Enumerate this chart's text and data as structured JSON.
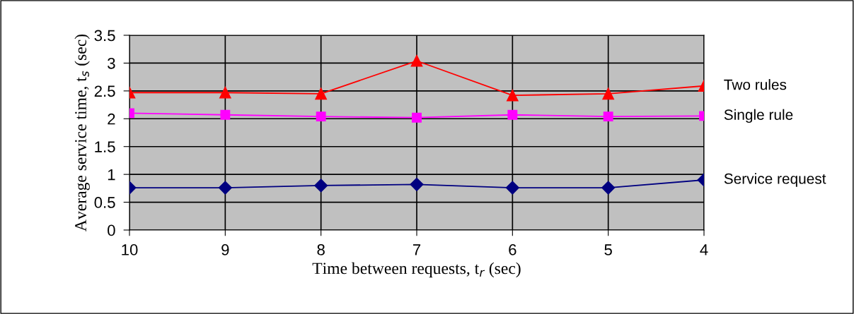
{
  "chart_data": {
    "type": "line",
    "xlabel": "Time between requests, t$_{r}$ (sec)",
    "ylabel": "Average service time, t$_{s}$ (sec)",
    "categories": [
      "10",
      "9",
      "8",
      "7",
      "6",
      "5",
      "4"
    ],
    "series": [
      {
        "name": "Two rules",
        "color": "#ff0000",
        "marker": "triangle",
        "values": [
          2.47,
          2.47,
          2.45,
          3.04,
          2.42,
          2.45,
          2.59
        ]
      },
      {
        "name": "Single rule",
        "color": "#ff00ff",
        "marker": "square",
        "values": [
          2.1,
          2.07,
          2.04,
          2.02,
          2.07,
          2.04,
          2.05
        ]
      },
      {
        "name": "Service request",
        "color": "#000080",
        "marker": "diamond",
        "values": [
          0.76,
          0.76,
          0.8,
          0.82,
          0.76,
          0.76,
          0.9
        ]
      }
    ],
    "ylim": [
      0,
      3.5
    ],
    "yticks": [
      0,
      0.5,
      1,
      1.5,
      2,
      2.5,
      3,
      3.5
    ],
    "grid": true,
    "legend": false,
    "line_style": "solid"
  }
}
